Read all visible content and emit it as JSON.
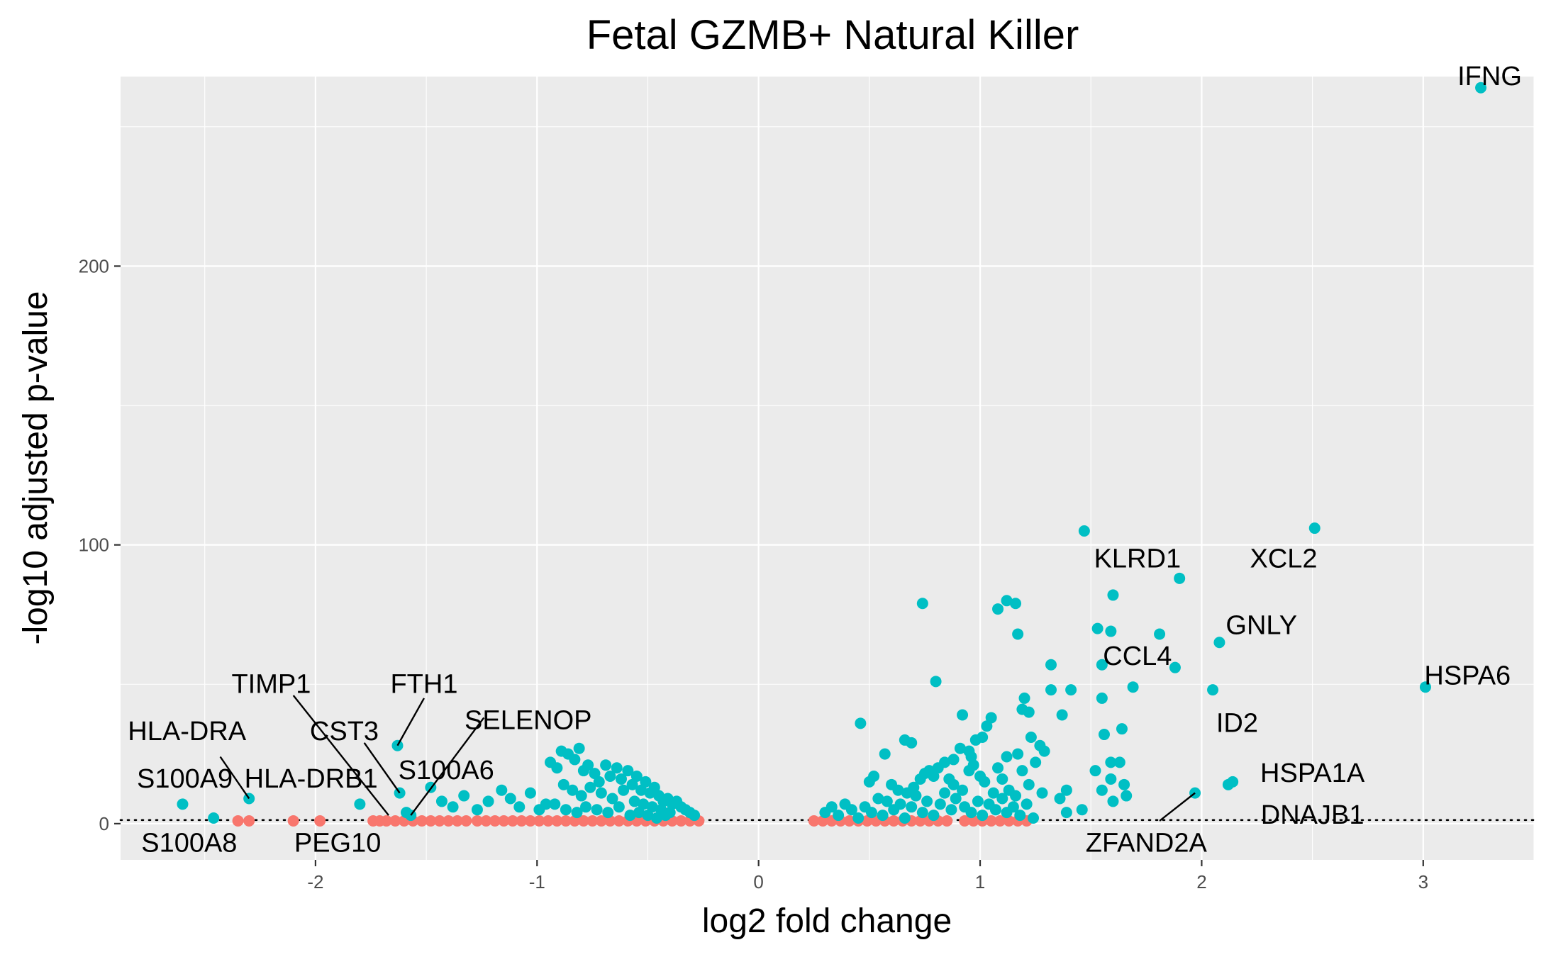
{
  "chart_data": {
    "type": "scatter",
    "title": "Fetal GZMB+ Natural Killer",
    "xlabel": "log2 fold change",
    "ylabel": "-log10 adjusted p-value",
    "xlim": [
      -2.88,
      3.5
    ],
    "ylim": [
      -13,
      268
    ],
    "x_ticks": [
      -2,
      -1,
      0,
      1,
      2,
      3
    ],
    "y_ticks": [
      0,
      100,
      200
    ],
    "threshold_line": {
      "y": 1.3,
      "style": "dotted"
    },
    "grid": true,
    "legend": "none",
    "colors": {
      "significant": "#00BFC4",
      "not_significant": "#F8766D",
      "panel": "#EBEBEB"
    },
    "series": [
      {
        "group": "significant",
        "points": [
          [
            3.26,
            264
          ],
          [
            2.51,
            106
          ],
          [
            1.47,
            105
          ],
          [
            1.9,
            88
          ],
          [
            1.6,
            82
          ],
          [
            2.08,
            65
          ],
          [
            1.81,
            68
          ],
          [
            1.53,
            70
          ],
          [
            1.59,
            69
          ],
          [
            1.55,
            57
          ],
          [
            1.88,
            56
          ],
          [
            3.01,
            49
          ],
          [
            2.05,
            48
          ],
          [
            1.69,
            49
          ],
          [
            0.74,
            79
          ],
          [
            1.12,
            80
          ],
          [
            1.16,
            79
          ],
          [
            1.08,
            77
          ],
          [
            1.17,
            68
          ],
          [
            1.32,
            57
          ],
          [
            1.32,
            48
          ],
          [
            1.41,
            48
          ],
          [
            1.2,
            45
          ],
          [
            1.37,
            39
          ],
          [
            1.19,
            41
          ],
          [
            1.22,
            40
          ],
          [
            1.55,
            45
          ],
          [
            1.64,
            34
          ],
          [
            1.56,
            32
          ],
          [
            1.05,
            38
          ],
          [
            0.8,
            51
          ],
          [
            0.92,
            39
          ],
          [
            1.03,
            35
          ],
          [
            1.01,
            31
          ],
          [
            0.98,
            30
          ],
          [
            1.23,
            31
          ],
          [
            1.27,
            28
          ],
          [
            1.29,
            26
          ],
          [
            1.17,
            25
          ],
          [
            1.12,
            24
          ],
          [
            0.46,
            36
          ],
          [
            0.57,
            25
          ],
          [
            0.66,
            30
          ],
          [
            0.69,
            29
          ],
          [
            0.91,
            27
          ],
          [
            0.95,
            26
          ],
          [
            0.96,
            24
          ],
          [
            0.88,
            23
          ],
          [
            0.75,
            18
          ],
          [
            0.79,
            17
          ],
          [
            0.5,
            15
          ],
          [
            0.52,
            17
          ],
          [
            0.6,
            14
          ],
          [
            0.63,
            12
          ],
          [
            0.67,
            11
          ],
          [
            0.7,
            13
          ],
          [
            0.73,
            16
          ],
          [
            0.77,
            19
          ],
          [
            0.81,
            20
          ],
          [
            0.84,
            22
          ],
          [
            0.86,
            16
          ],
          [
            0.88,
            14
          ],
          [
            0.92,
            12
          ],
          [
            0.95,
            19
          ],
          [
            0.97,
            21
          ],
          [
            1.0,
            17
          ],
          [
            1.02,
            15
          ],
          [
            1.06,
            11
          ],
          [
            1.08,
            20
          ],
          [
            1.1,
            16
          ],
          [
            1.13,
            12
          ],
          [
            1.16,
            10
          ],
          [
            1.19,
            19
          ],
          [
            1.22,
            14
          ],
          [
            1.25,
            22
          ],
          [
            1.28,
            11
          ],
          [
            1.36,
            9
          ],
          [
            1.39,
            12
          ],
          [
            1.59,
            22
          ],
          [
            1.63,
            22
          ],
          [
            1.52,
            19
          ],
          [
            1.55,
            12
          ],
          [
            1.59,
            16
          ],
          [
            1.65,
            14
          ],
          [
            1.66,
            10
          ],
          [
            1.6,
            8
          ],
          [
            1.39,
            4
          ],
          [
            1.46,
            5
          ],
          [
            1.97,
            11
          ],
          [
            2.14,
            15
          ],
          [
            2.12,
            14
          ],
          [
            0.3,
            4
          ],
          [
            0.33,
            6
          ],
          [
            0.36,
            3
          ],
          [
            0.39,
            7
          ],
          [
            0.42,
            5
          ],
          [
            0.45,
            2
          ],
          [
            0.48,
            6
          ],
          [
            0.51,
            4
          ],
          [
            0.54,
            9
          ],
          [
            0.56,
            3
          ],
          [
            0.58,
            8
          ],
          [
            0.61,
            5
          ],
          [
            0.64,
            7
          ],
          [
            0.66,
            2
          ],
          [
            0.69,
            6
          ],
          [
            0.71,
            10
          ],
          [
            0.74,
            4
          ],
          [
            0.76,
            8
          ],
          [
            0.79,
            3
          ],
          [
            0.82,
            7
          ],
          [
            0.84,
            11
          ],
          [
            0.87,
            5
          ],
          [
            0.89,
            9
          ],
          [
            0.93,
            6
          ],
          [
            0.96,
            4
          ],
          [
            0.99,
            8
          ],
          [
            1.01,
            3
          ],
          [
            1.04,
            7
          ],
          [
            1.07,
            5
          ],
          [
            1.1,
            9
          ],
          [
            1.12,
            4
          ],
          [
            1.15,
            6
          ],
          [
            1.18,
            3
          ],
          [
            1.21,
            7
          ],
          [
            1.24,
            2
          ],
          [
            -2.3,
            9
          ],
          [
            -2.6,
            7
          ],
          [
            -2.46,
            2
          ],
          [
            -1.8,
            7
          ],
          [
            -1.62,
            11
          ],
          [
            -1.63,
            28
          ],
          [
            -1.59,
            4
          ],
          [
            -1.57,
            3
          ],
          [
            -1.48,
            13
          ],
          [
            -1.43,
            8
          ],
          [
            -1.38,
            6
          ],
          [
            -1.33,
            10
          ],
          [
            -1.27,
            5
          ],
          [
            -1.22,
            8
          ],
          [
            -1.16,
            12
          ],
          [
            -1.12,
            9
          ],
          [
            -1.08,
            6
          ],
          [
            -1.03,
            11
          ],
          [
            -0.99,
            5
          ],
          [
            -0.96,
            7
          ],
          [
            -0.94,
            22
          ],
          [
            -0.91,
            20
          ],
          [
            -0.89,
            26
          ],
          [
            -0.86,
            25
          ],
          [
            -0.83,
            23
          ],
          [
            -0.81,
            27
          ],
          [
            -0.79,
            19
          ],
          [
            -0.77,
            21
          ],
          [
            -0.74,
            18
          ],
          [
            -0.72,
            15
          ],
          [
            -0.69,
            21
          ],
          [
            -0.67,
            17
          ],
          [
            -0.64,
            20
          ],
          [
            -0.62,
            16
          ],
          [
            -0.59,
            19
          ],
          [
            -0.57,
            14
          ],
          [
            -0.55,
            17
          ],
          [
            -0.53,
            12
          ],
          [
            -0.51,
            15
          ],
          [
            -0.49,
            11
          ],
          [
            -0.47,
            13
          ],
          [
            -0.45,
            10
          ],
          [
            -0.43,
            8
          ],
          [
            -0.41,
            9
          ],
          [
            -0.39,
            7
          ],
          [
            -0.37,
            8
          ],
          [
            -0.35,
            6
          ],
          [
            -0.33,
            5
          ],
          [
            -0.31,
            4
          ],
          [
            -0.29,
            3
          ],
          [
            -0.88,
            14
          ],
          [
            -0.84,
            12
          ],
          [
            -0.8,
            10
          ],
          [
            -0.76,
            13
          ],
          [
            -0.71,
            11
          ],
          [
            -0.66,
            9
          ],
          [
            -0.61,
            12
          ],
          [
            -0.56,
            8
          ],
          [
            -0.52,
            7
          ],
          [
            -0.48,
            6
          ],
          [
            -0.44,
            5
          ],
          [
            -0.4,
            4
          ],
          [
            -0.92,
            7
          ],
          [
            -0.87,
            5
          ],
          [
            -0.82,
            4
          ],
          [
            -0.78,
            6
          ],
          [
            -0.73,
            5
          ],
          [
            -0.68,
            4
          ],
          [
            -0.63,
            6
          ],
          [
            -0.58,
            3
          ],
          [
            -0.54,
            4
          ],
          [
            -0.5,
            3
          ],
          [
            -0.46,
            2
          ],
          [
            -0.42,
            3
          ]
        ]
      },
      {
        "group": "not_significant",
        "points": [
          [
            -2.35,
            1
          ],
          [
            -2.3,
            1
          ],
          [
            -2.1,
            1
          ],
          [
            -1.98,
            1
          ],
          [
            -1.74,
            1
          ],
          [
            -1.71,
            1
          ],
          [
            -1.68,
            1
          ],
          [
            -1.64,
            1
          ],
          [
            -1.6,
            1
          ],
          [
            -1.56,
            1
          ],
          [
            -1.52,
            1
          ],
          [
            -1.48,
            1
          ],
          [
            -1.44,
            1
          ],
          [
            -1.4,
            1
          ],
          [
            -1.36,
            1
          ],
          [
            -1.32,
            1
          ],
          [
            -1.27,
            1
          ],
          [
            -1.23,
            1
          ],
          [
            -1.19,
            1
          ],
          [
            -1.15,
            1
          ],
          [
            -1.11,
            1
          ],
          [
            -1.07,
            1
          ],
          [
            -1.03,
            1
          ],
          [
            -0.99,
            1
          ],
          [
            -0.95,
            1
          ],
          [
            -0.91,
            1
          ],
          [
            -0.87,
            1
          ],
          [
            -0.83,
            1
          ],
          [
            -0.79,
            1
          ],
          [
            -0.75,
            1
          ],
          [
            -0.71,
            1
          ],
          [
            -0.67,
            1
          ],
          [
            -0.63,
            1
          ],
          [
            -0.59,
            1
          ],
          [
            -0.55,
            1
          ],
          [
            -0.51,
            1
          ],
          [
            -0.47,
            1
          ],
          [
            -0.43,
            1
          ],
          [
            -0.39,
            1
          ],
          [
            -0.35,
            1
          ],
          [
            -0.31,
            1
          ],
          [
            -0.27,
            1
          ],
          [
            0.25,
            1
          ],
          [
            0.29,
            1
          ],
          [
            0.33,
            1
          ],
          [
            0.37,
            1
          ],
          [
            0.41,
            1
          ],
          [
            0.45,
            1
          ],
          [
            0.49,
            1
          ],
          [
            0.53,
            1
          ],
          [
            0.57,
            1
          ],
          [
            0.61,
            1
          ],
          [
            0.65,
            1
          ],
          [
            0.69,
            1
          ],
          [
            0.73,
            1
          ],
          [
            0.77,
            1
          ],
          [
            0.81,
            1
          ],
          [
            0.85,
            1
          ],
          [
            0.93,
            1
          ],
          [
            0.97,
            1
          ],
          [
            1.01,
            1
          ],
          [
            1.05,
            1
          ],
          [
            1.09,
            1
          ],
          [
            1.13,
            1
          ],
          [
            1.17,
            1
          ],
          [
            1.21,
            1
          ]
        ]
      }
    ],
    "labels": [
      {
        "text": "IFNG",
        "x": 3.26,
        "y": 264,
        "dx": 3.3,
        "dy": 268,
        "anchor": "middle",
        "leader": false
      },
      {
        "text": "XCL2",
        "x": 2.51,
        "y": 106,
        "dx": 2.37,
        "dy": 95,
        "anchor": "middle",
        "leader": false
      },
      {
        "text": "KLRD1",
        "x": 1.9,
        "y": 88,
        "dx": 1.71,
        "dy": 95,
        "anchor": "middle",
        "leader": false
      },
      {
        "text": "GNLY",
        "x": 2.08,
        "y": 65,
        "dx": 2.27,
        "dy": 71,
        "anchor": "middle",
        "leader": false
      },
      {
        "text": "CCL4",
        "x": 1.81,
        "y": 68,
        "dx": 1.71,
        "dy": 60,
        "anchor": "middle",
        "leader": false
      },
      {
        "text": "HSPA6",
        "x": 3.01,
        "y": 49,
        "dx": 3.2,
        "dy": 53,
        "anchor": "middle",
        "leader": false
      },
      {
        "text": "ID2",
        "x": 2.05,
        "y": 48,
        "dx": 2.16,
        "dy": 36,
        "anchor": "middle",
        "leader": false
      },
      {
        "text": "HSPA1A",
        "x": 2.14,
        "y": 15,
        "dx": 2.5,
        "dy": 18,
        "anchor": "middle",
        "leader": false
      },
      {
        "text": "DNAJB1",
        "x": 2.12,
        "y": 14,
        "dx": 2.5,
        "dy": 3,
        "anchor": "middle",
        "leader": false
      },
      {
        "text": "ZFAND2A",
        "x": 1.97,
        "y": 11,
        "dx": 1.75,
        "dy": -7,
        "anchor": "middle",
        "leader": true,
        "lx": 1.81,
        "ly": 1
      },
      {
        "text": "TIMP1",
        "x": -1.67,
        "y": 3,
        "dx": -2.2,
        "dy": 50,
        "anchor": "middle",
        "leader": true,
        "lx": -2.1,
        "ly": 46
      },
      {
        "text": "FTH1",
        "x": -1.63,
        "y": 28,
        "dx": -1.51,
        "dy": 50,
        "anchor": "middle",
        "leader": true,
        "lx": -1.51,
        "ly": 45
      },
      {
        "text": "SELENOP",
        "x": -1.57,
        "y": 3,
        "dx": -1.04,
        "dy": 37,
        "anchor": "middle",
        "leader": true,
        "lx": -1.24,
        "ly": 38
      },
      {
        "text": "CST3",
        "x": -1.62,
        "y": 11,
        "dx": -1.87,
        "dy": 33,
        "anchor": "middle",
        "leader": true,
        "lx": -1.78,
        "ly": 29
      },
      {
        "text": "HLA-DRA",
        "x": -2.3,
        "y": 9,
        "dx": -2.58,
        "dy": 33,
        "anchor": "middle",
        "leader": true,
        "lx": -2.43,
        "ly": 24
      },
      {
        "text": "S100A6",
        "x": -1.48,
        "y": 13,
        "dx": -1.41,
        "dy": 19,
        "anchor": "middle",
        "leader": false
      },
      {
        "text": "S100A9",
        "x": -2.46,
        "y": 2,
        "dx": -2.59,
        "dy": 16,
        "anchor": "middle",
        "leader": false
      },
      {
        "text": "HLA-DRB1",
        "x": -2.3,
        "y": 9,
        "dx": -2.02,
        "dy": 16,
        "anchor": "middle",
        "leader": false
      },
      {
        "text": "S100A8",
        "x": -2.6,
        "y": 7,
        "dx": -2.57,
        "dy": -7,
        "anchor": "middle",
        "leader": false
      },
      {
        "text": "PEG10",
        "x": -1.98,
        "y": 1,
        "dx": -1.9,
        "dy": -7,
        "anchor": "middle",
        "leader": false
      }
    ]
  }
}
